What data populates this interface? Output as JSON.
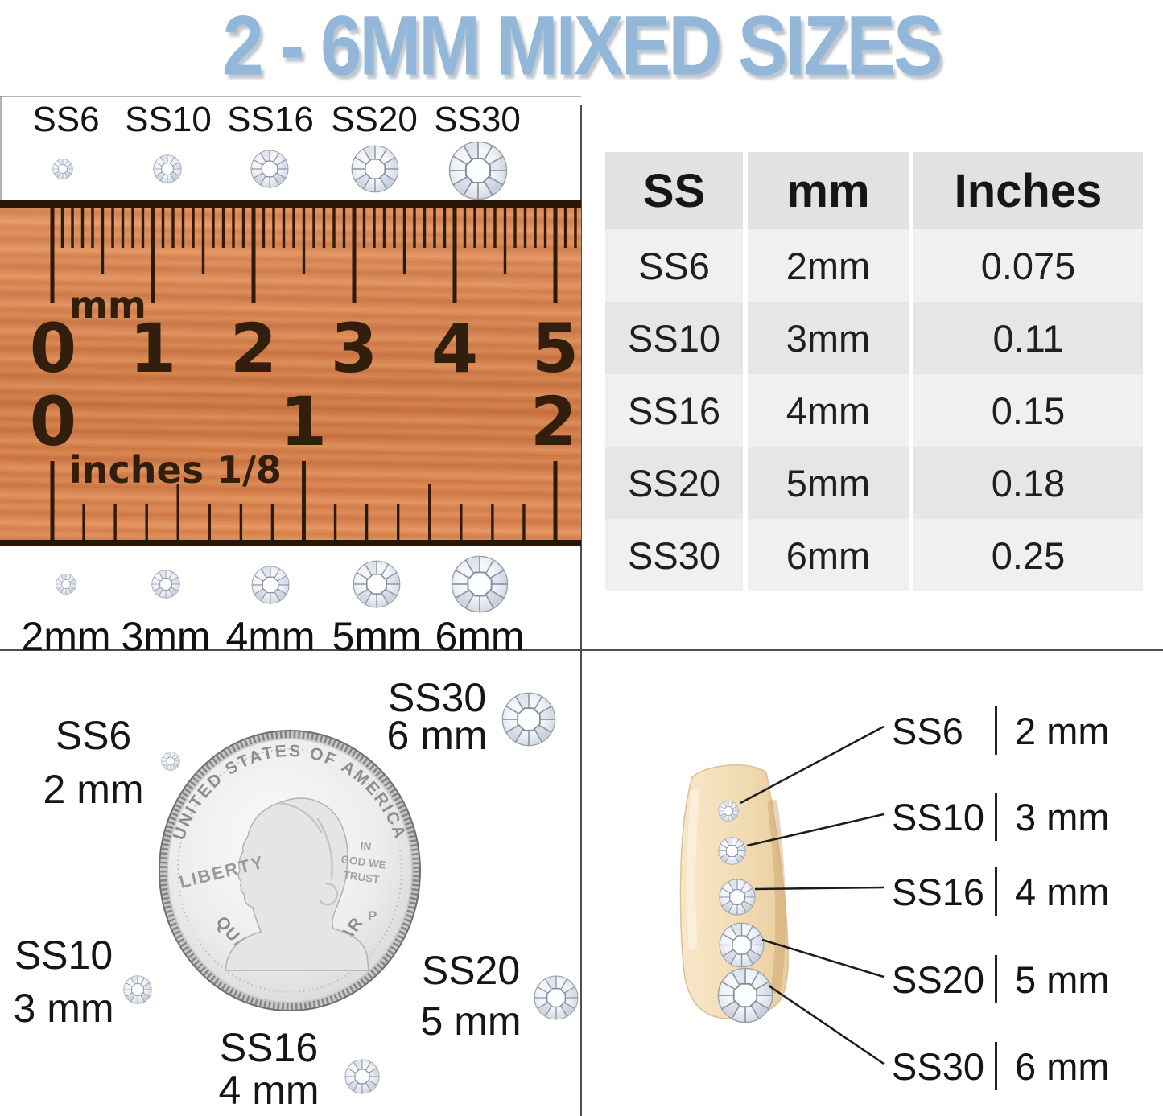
{
  "title": "2 - 6MM MIXED SIZES",
  "colors": {
    "title_blue": "#92b7d8",
    "ruler_orange": "#dd8550",
    "table_header_bg": "#e2e2e2",
    "table_row_light": "#f0f0f0",
    "table_row_dark": "#e6e6e6",
    "divider_gray": "#4d4d4d"
  },
  "top_row": {
    "items": [
      {
        "ss": "SS6"
      },
      {
        "ss": "SS10"
      },
      {
        "ss": "SS16"
      },
      {
        "ss": "SS20"
      },
      {
        "ss": "SS30"
      }
    ]
  },
  "ruler": {
    "unit_top": "mm",
    "numbers_mm": [
      "0",
      "1",
      "2",
      "3",
      "4",
      "5"
    ],
    "unit_bottom": "inches 1/8",
    "numbers_inch": [
      "0",
      "1",
      "2"
    ]
  },
  "mm_row": {
    "items": [
      {
        "size": "2mm"
      },
      {
        "size": "3mm"
      },
      {
        "size": "4mm"
      },
      {
        "size": "5mm"
      },
      {
        "size": "6mm"
      }
    ]
  },
  "table": {
    "headers": [
      "SS",
      "mm",
      "Inches"
    ],
    "rows": [
      [
        "SS6",
        "2mm",
        "0.075"
      ],
      [
        "SS10",
        "3mm",
        "0.11"
      ],
      [
        "SS16",
        "4mm",
        "0.15"
      ],
      [
        "SS20",
        "5mm",
        "0.18"
      ],
      [
        "SS30",
        "6mm",
        "0.25"
      ]
    ]
  },
  "coin_diagram": {
    "coin_text": {
      "top": "UNITED STATES OF AMERICA",
      "left": "LIBERTY",
      "motto": [
        "IN",
        "GOD WE",
        "TRUST"
      ],
      "bottom": "QUARTER DOLLAR",
      "mint_mark": "P"
    },
    "callouts": [
      {
        "ss": "SS6",
        "size": "2 mm"
      },
      {
        "ss": "SS30",
        "size": "6 mm"
      },
      {
        "ss": "SS10",
        "size": "3 mm"
      },
      {
        "ss": "SS20",
        "size": "5 mm"
      },
      {
        "ss": "SS16",
        "size": "4 mm"
      }
    ]
  },
  "nail_diagram": {
    "labels": [
      {
        "ss": "SS6",
        "size": "2 mm"
      },
      {
        "ss": "SS10",
        "size": "3 mm"
      },
      {
        "ss": "SS16",
        "size": "4 mm"
      },
      {
        "ss": "SS20",
        "size": "5 mm"
      },
      {
        "ss": "SS30",
        "size": "6 mm"
      }
    ]
  }
}
